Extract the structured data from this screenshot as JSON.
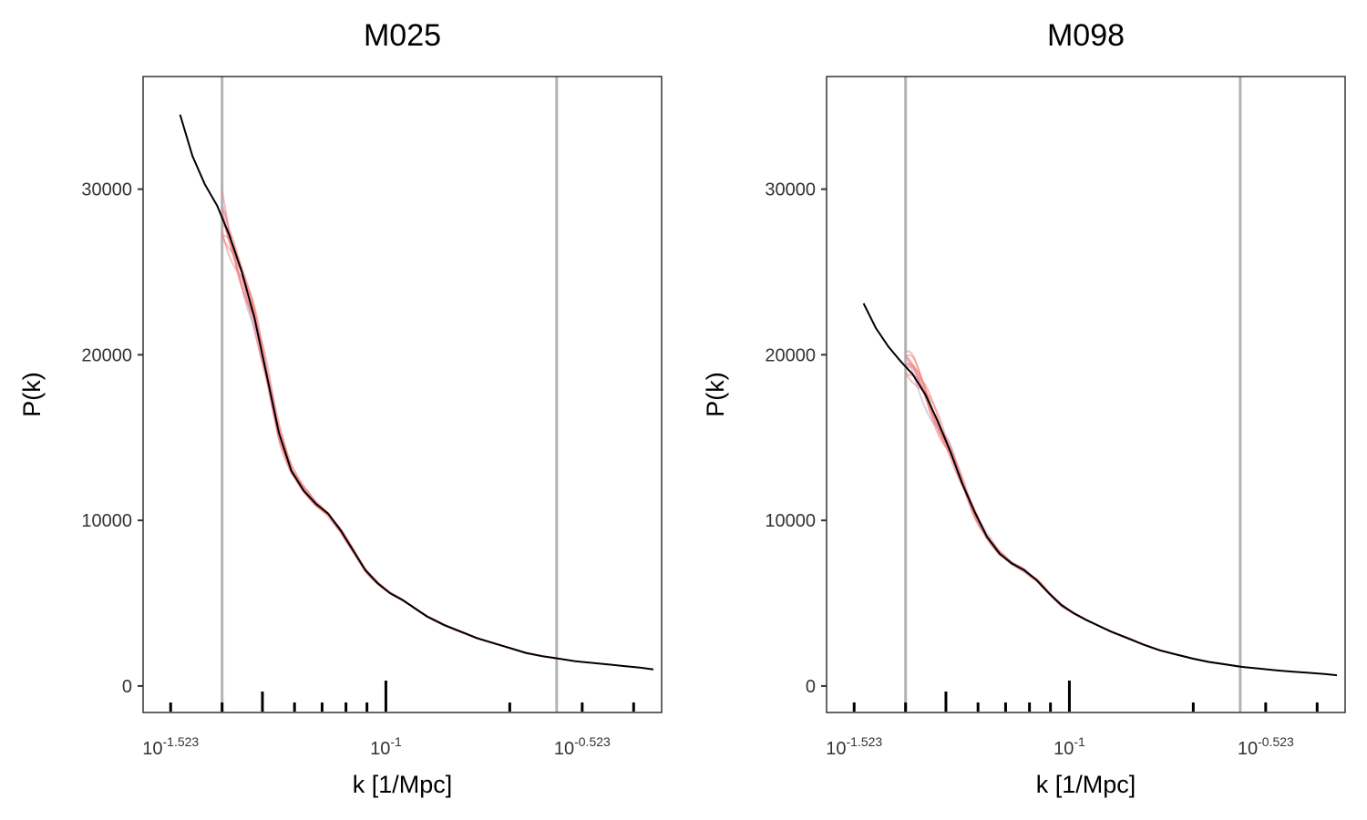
{
  "chart_data": [
    {
      "type": "line",
      "title": "M025",
      "xlabel": "k [1/Mpc]",
      "ylabel": "P(k)",
      "x_scale": "log10",
      "xlim_log10": [
        -1.59,
        -0.33
      ],
      "ylim": [
        -1600,
        36800
      ],
      "yticks": [
        0,
        10000,
        20000,
        30000
      ],
      "ytick_labels": [
        "0",
        "10000",
        "20000",
        "30000"
      ],
      "xtick_labels": [
        {
          "base": "10",
          "exp": "-1.523",
          "log10": -1.523
        },
        {
          "base": "10",
          "exp": "-1",
          "log10": -1.0
        },
        {
          "base": "10",
          "exp": "-0.523",
          "log10": -0.523
        }
      ],
      "vlines_log10": [
        -1.398,
        -0.585
      ],
      "rug_log10": [
        -1.523,
        -1.398,
        -1.3,
        -1.222,
        -1.155,
        -1.097,
        -1.046,
        -1.0,
        -0.699,
        -0.523,
        -0.398
      ],
      "theory": {
        "name": "theory",
        "color": "#000000",
        "log10k": [
          -1.5,
          -1.47,
          -1.44,
          -1.41,
          -1.38,
          -1.35,
          -1.32,
          -1.29,
          -1.26,
          -1.23,
          -1.2,
          -1.17,
          -1.14,
          -1.11,
          -1.08,
          -1.05,
          -1.02,
          -0.99,
          -0.96,
          -0.93,
          -0.9,
          -0.86,
          -0.82,
          -0.78,
          -0.74,
          -0.7,
          -0.66,
          -0.62,
          -0.58,
          -0.54,
          -0.5,
          -0.46,
          -0.42,
          -0.38,
          -0.35
        ],
        "values": [
          34500,
          32000,
          30300,
          29000,
          27200,
          25000,
          22300,
          18800,
          15300,
          13000,
          11800,
          11000,
          10400,
          9400,
          8200,
          7000,
          6200,
          5600,
          5200,
          4700,
          4200,
          3700,
          3300,
          2900,
          2600,
          2300,
          2000,
          1800,
          1650,
          1500,
          1400,
          1300,
          1200,
          1100,
          1000
        ]
      },
      "simulations": {
        "name": "realizations",
        "color": "#f08080",
        "count": 10,
        "log10k_range": [
          -1.398,
          -0.585
        ]
      }
    },
    {
      "type": "line",
      "title": "M098",
      "xlabel": "k [1/Mpc]",
      "ylabel": "P(k)",
      "x_scale": "log10",
      "xlim_log10": [
        -1.59,
        -0.33
      ],
      "ylim": [
        -1600,
        36800
      ],
      "yticks": [
        0,
        10000,
        20000,
        30000
      ],
      "ytick_labels": [
        "0",
        "10000",
        "20000",
        "30000"
      ],
      "xtick_labels": [
        {
          "base": "10",
          "exp": "-1.523",
          "log10": -1.523
        },
        {
          "base": "10",
          "exp": "-1",
          "log10": -1.0
        },
        {
          "base": "10",
          "exp": "-0.523",
          "log10": -0.523
        }
      ],
      "vlines_log10": [
        -1.398,
        -0.585
      ],
      "rug_log10": [
        -1.523,
        -1.398,
        -1.3,
        -1.222,
        -1.155,
        -1.097,
        -1.046,
        -1.0,
        -0.699,
        -0.523,
        -0.398
      ],
      "theory": {
        "name": "theory",
        "color": "#000000",
        "log10k": [
          -1.5,
          -1.47,
          -1.44,
          -1.41,
          -1.38,
          -1.35,
          -1.32,
          -1.29,
          -1.26,
          -1.23,
          -1.2,
          -1.17,
          -1.14,
          -1.11,
          -1.08,
          -1.05,
          -1.02,
          -0.99,
          -0.96,
          -0.93,
          -0.9,
          -0.86,
          -0.82,
          -0.78,
          -0.74,
          -0.7,
          -0.66,
          -0.62,
          -0.58,
          -0.54,
          -0.5,
          -0.46,
          -0.42,
          -0.38,
          -0.35
        ],
        "values": [
          23100,
          21600,
          20500,
          19600,
          18800,
          17600,
          16000,
          14200,
          12200,
          10500,
          9000,
          8000,
          7400,
          7000,
          6400,
          5600,
          4900,
          4400,
          4000,
          3650,
          3300,
          2900,
          2500,
          2150,
          1900,
          1650,
          1450,
          1300,
          1150,
          1050,
          950,
          870,
          800,
          720,
          650
        ]
      },
      "simulations": {
        "name": "realizations",
        "color": "#f08080",
        "count": 10,
        "log10k_range": [
          -1.398,
          -0.585
        ]
      }
    }
  ]
}
